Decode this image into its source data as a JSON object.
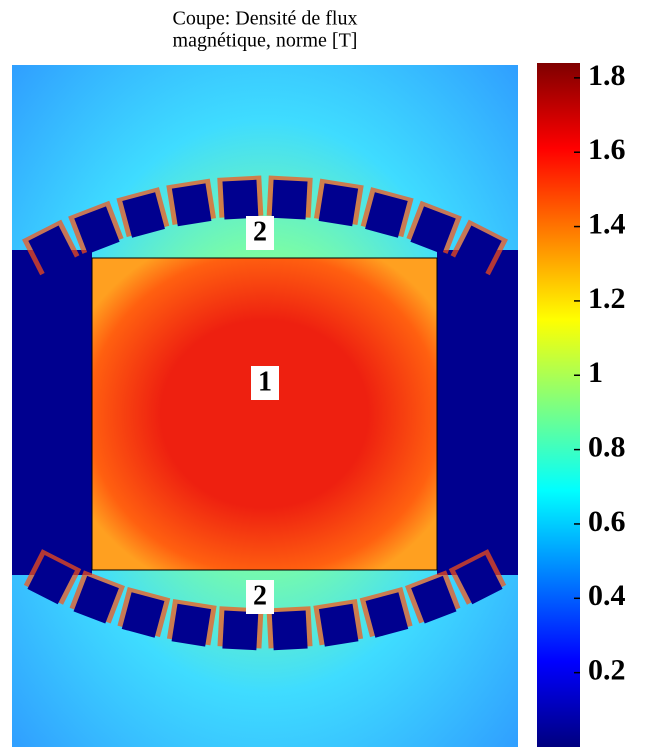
{
  "chart_data": {
    "type": "field-map",
    "title": "Coupe: Densité de flux",
    "subtitle": "magnétique, norme [T]",
    "region_labels": [
      "2",
      "1",
      "2"
    ],
    "colorbar": {
      "ylim": [
        0,
        1.84
      ],
      "yticks": [
        0.2,
        0.4,
        0.6,
        0.8,
        1,
        1.2,
        1.4,
        1.6,
        1.8
      ],
      "colormap": [
        "#00007f",
        "#0000ff",
        "#007fff",
        "#00ffff",
        "#7fff7f",
        "#ffff00",
        "#ff7f00",
        "#ff0000",
        "#7f0000"
      ]
    }
  }
}
